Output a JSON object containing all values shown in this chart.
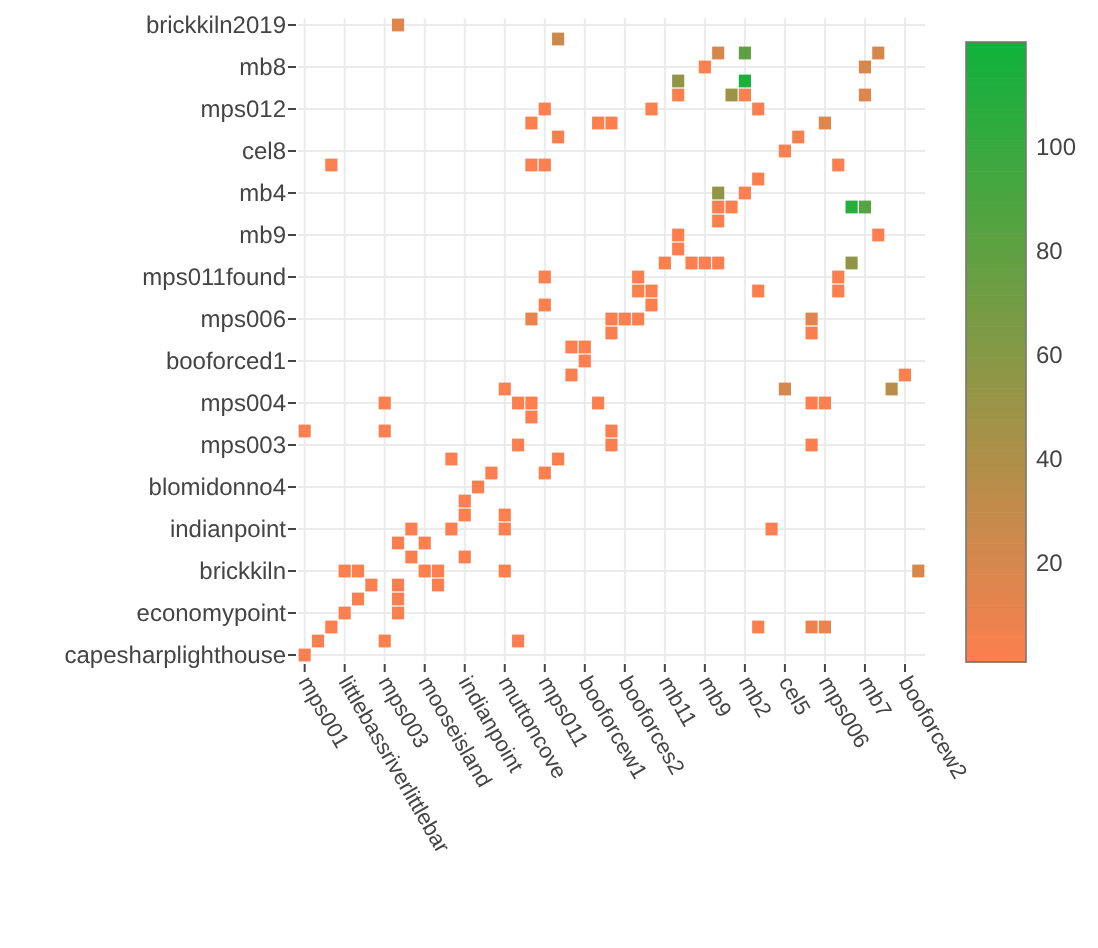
{
  "chart_data": {
    "type": "heatmap",
    "categories": [
      "mps001",
      null,
      null,
      "littlebassriverlittlebar",
      null,
      null,
      "mps003",
      null,
      null,
      "mooseisland",
      null,
      null,
      "indianpoint",
      null,
      null,
      "muttoncove",
      null,
      null,
      "mps011",
      null,
      null,
      "booforcew1",
      null,
      null,
      "booforces2",
      null,
      null,
      "mb11",
      null,
      null,
      "mb9",
      null,
      null,
      "mb2",
      null,
      null,
      "cel5",
      null,
      null,
      "mps006",
      null,
      null,
      "mb7",
      null,
      null,
      "booforcew2",
      null
    ],
    "y_categories": [
      "brickkiln2019",
      null,
      null,
      "mb8",
      null,
      null,
      "mps012",
      null,
      null,
      "cel8",
      null,
      null,
      "mb4",
      null,
      null,
      "mb9",
      null,
      null,
      "mps011found",
      null,
      null,
      "mps006",
      null,
      null,
      "booforced1",
      null,
      null,
      "mps004",
      null,
      null,
      "mps003",
      null,
      null,
      "blomidonno4",
      null,
      null,
      "indianpoint",
      null,
      null,
      "brickkiln",
      null,
      null,
      "economypoint",
      null,
      null,
      "capesharplighthouse"
    ],
    "cells": [
      [
        null,
        null,
        null,
        null,
        null,
        null,
        null,
        15,
        null,
        null,
        null,
        null,
        null,
        null,
        null,
        null,
        null,
        null,
        null,
        null,
        null,
        null,
        null,
        null,
        null,
        null,
        null,
        null,
        null,
        null,
        null,
        null,
        null,
        null,
        null,
        null,
        null,
        null,
        null,
        null,
        null,
        null,
        null,
        null,
        null,
        null,
        null
      ],
      [
        null,
        null,
        null,
        null,
        null,
        null,
        null,
        null,
        null,
        null,
        null,
        null,
        null,
        null,
        null,
        null,
        null,
        null,
        null,
        25,
        null,
        null,
        null,
        null,
        null,
        null,
        null,
        null,
        null,
        null,
        null,
        null,
        null,
        null,
        null,
        null,
        null,
        null,
        null,
        null,
        null,
        null,
        null,
        null,
        null,
        null,
        null
      ],
      [
        null,
        null,
        null,
        null,
        null,
        null,
        null,
        null,
        null,
        null,
        null,
        null,
        null,
        null,
        null,
        null,
        null,
        null,
        null,
        null,
        null,
        null,
        null,
        null,
        null,
        null,
        null,
        null,
        null,
        null,
        null,
        20,
        null,
        80,
        null,
        null,
        null,
        null,
        null,
        null,
        null,
        null,
        null,
        20,
        null,
        null,
        null
      ],
      [
        null,
        null,
        null,
        null,
        null,
        null,
        null,
        null,
        null,
        null,
        null,
        null,
        null,
        null,
        null,
        null,
        null,
        null,
        null,
        null,
        null,
        null,
        null,
        null,
        null,
        null,
        null,
        null,
        null,
        null,
        2,
        null,
        null,
        null,
        null,
        null,
        null,
        null,
        null,
        null,
        null,
        null,
        20,
        null,
        null,
        null,
        null
      ],
      [
        null,
        null,
        null,
        null,
        null,
        null,
        null,
        null,
        null,
        null,
        null,
        null,
        null,
        null,
        null,
        null,
        null,
        null,
        null,
        null,
        null,
        null,
        null,
        null,
        null,
        null,
        null,
        null,
        55,
        null,
        null,
        null,
        null,
        115,
        null,
        null,
        null,
        null,
        null,
        null,
        null,
        null,
        null,
        null,
        null,
        null,
        null
      ],
      [
        null,
        null,
        null,
        null,
        null,
        null,
        null,
        null,
        null,
        null,
        null,
        null,
        null,
        null,
        null,
        null,
        null,
        null,
        null,
        null,
        null,
        null,
        null,
        null,
        null,
        null,
        null,
        null,
        2,
        null,
        null,
        null,
        50,
        2,
        null,
        null,
        null,
        null,
        null,
        null,
        null,
        null,
        15,
        null,
        null,
        null,
        null
      ],
      [
        null,
        null,
        null,
        null,
        null,
        null,
        null,
        null,
        null,
        null,
        null,
        null,
        null,
        null,
        null,
        null,
        null,
        null,
        2,
        null,
        null,
        null,
        null,
        null,
        null,
        null,
        2,
        null,
        null,
        null,
        null,
        null,
        null,
        null,
        2,
        null,
        null,
        null,
        null,
        null,
        null,
        null,
        null,
        null,
        null,
        null,
        null
      ],
      [
        null,
        null,
        null,
        null,
        null,
        null,
        null,
        null,
        null,
        null,
        null,
        null,
        null,
        null,
        null,
        null,
        null,
        2,
        null,
        null,
        null,
        null,
        2,
        2,
        null,
        null,
        null,
        null,
        null,
        null,
        null,
        null,
        null,
        null,
        null,
        null,
        null,
        null,
        null,
        15,
        null,
        null,
        null,
        null,
        null,
        null,
        null
      ],
      [
        null,
        null,
        null,
        null,
        null,
        null,
        null,
        null,
        null,
        null,
        null,
        null,
        null,
        null,
        null,
        null,
        null,
        null,
        null,
        2,
        null,
        null,
        null,
        null,
        null,
        null,
        null,
        null,
        null,
        null,
        null,
        null,
        null,
        null,
        null,
        null,
        null,
        2,
        null,
        null,
        null,
        null,
        null,
        null,
        null,
        null,
        null
      ],
      [
        null,
        null,
        null,
        null,
        null,
        null,
        null,
        null,
        null,
        null,
        null,
        null,
        null,
        null,
        null,
        null,
        null,
        null,
        null,
        null,
        null,
        null,
        null,
        null,
        null,
        null,
        null,
        null,
        null,
        null,
        null,
        null,
        null,
        null,
        null,
        null,
        2,
        null,
        null,
        null,
        null,
        null,
        null,
        null,
        null,
        null,
        null
      ],
      [
        null,
        null,
        2,
        null,
        null,
        null,
        null,
        null,
        null,
        null,
        null,
        null,
        null,
        null,
        null,
        null,
        null,
        2,
        2,
        null,
        null,
        null,
        null,
        null,
        null,
        null,
        null,
        null,
        null,
        null,
        null,
        null,
        null,
        null,
        null,
        null,
        null,
        null,
        null,
        null,
        2,
        null,
        null,
        null,
        null,
        null,
        null
      ],
      [
        null,
        null,
        null,
        null,
        null,
        null,
        null,
        null,
        null,
        null,
        null,
        null,
        null,
        null,
        null,
        null,
        null,
        null,
        null,
        null,
        null,
        null,
        null,
        null,
        null,
        null,
        null,
        null,
        null,
        null,
        null,
        null,
        null,
        null,
        2,
        null,
        null,
        null,
        null,
        null,
        null,
        null,
        null,
        null,
        null,
        null,
        null
      ],
      [
        null,
        null,
        null,
        null,
        null,
        null,
        null,
        null,
        null,
        null,
        null,
        null,
        null,
        null,
        null,
        null,
        null,
        null,
        null,
        null,
        null,
        null,
        null,
        null,
        null,
        null,
        null,
        null,
        null,
        null,
        null,
        55,
        null,
        2,
        null,
        null,
        null,
        null,
        null,
        null,
        null,
        null,
        null,
        null,
        null,
        null,
        null
      ],
      [
        null,
        null,
        null,
        null,
        null,
        null,
        null,
        null,
        null,
        null,
        null,
        null,
        null,
        null,
        null,
        null,
        null,
        null,
        null,
        null,
        null,
        null,
        null,
        null,
        null,
        null,
        null,
        null,
        null,
        null,
        null,
        2,
        2,
        null,
        null,
        null,
        null,
        null,
        null,
        null,
        null,
        110,
        85,
        null,
        null,
        null,
        null
      ],
      [
        null,
        null,
        null,
        null,
        null,
        null,
        null,
        null,
        null,
        null,
        null,
        null,
        null,
        null,
        null,
        null,
        null,
        null,
        null,
        null,
        null,
        null,
        null,
        null,
        null,
        null,
        null,
        null,
        null,
        null,
        null,
        2,
        null,
        null,
        null,
        null,
        null,
        null,
        null,
        null,
        null,
        null,
        null,
        null,
        null,
        null,
        null
      ],
      [
        null,
        null,
        null,
        null,
        null,
        null,
        null,
        null,
        null,
        null,
        null,
        null,
        null,
        null,
        null,
        null,
        null,
        null,
        null,
        null,
        null,
        null,
        null,
        null,
        null,
        null,
        null,
        null,
        2,
        null,
        null,
        null,
        null,
        null,
        null,
        null,
        null,
        null,
        null,
        null,
        null,
        null,
        null,
        2,
        null,
        null,
        null
      ],
      [
        null,
        null,
        null,
        null,
        null,
        null,
        null,
        null,
        null,
        null,
        null,
        null,
        null,
        null,
        null,
        null,
        null,
        null,
        null,
        null,
        null,
        null,
        null,
        null,
        null,
        null,
        null,
        null,
        2,
        null,
        null,
        null,
        null,
        null,
        null,
        null,
        null,
        null,
        null,
        null,
        null,
        null,
        null,
        null,
        null,
        null,
        null
      ],
      [
        null,
        null,
        null,
        null,
        null,
        null,
        null,
        null,
        null,
        null,
        null,
        null,
        null,
        null,
        null,
        null,
        null,
        null,
        null,
        null,
        null,
        null,
        null,
        null,
        null,
        null,
        null,
        2,
        null,
        2,
        2,
        2,
        null,
        null,
        null,
        null,
        null,
        null,
        null,
        null,
        null,
        55,
        null,
        null,
        null,
        null,
        null
      ],
      [
        null,
        null,
        null,
        null,
        null,
        null,
        null,
        null,
        null,
        null,
        null,
        null,
        null,
        null,
        null,
        null,
        null,
        null,
        2,
        null,
        null,
        null,
        null,
        null,
        null,
        2,
        null,
        null,
        null,
        null,
        null,
        null,
        null,
        null,
        null,
        null,
        null,
        null,
        null,
        null,
        2,
        null,
        null,
        null,
        null,
        null,
        null
      ],
      [
        null,
        null,
        null,
        null,
        null,
        null,
        null,
        null,
        null,
        null,
        null,
        null,
        null,
        null,
        null,
        null,
        null,
        null,
        null,
        null,
        null,
        null,
        null,
        null,
        null,
        2,
        2,
        null,
        null,
        null,
        null,
        null,
        null,
        null,
        2,
        null,
        null,
        null,
        null,
        null,
        2,
        null,
        null,
        null,
        null,
        null,
        null
      ],
      [
        null,
        null,
        null,
        null,
        null,
        null,
        null,
        null,
        null,
        null,
        null,
        null,
        null,
        null,
        null,
        null,
        null,
        null,
        2,
        null,
        null,
        null,
        null,
        null,
        null,
        null,
        2,
        null,
        null,
        null,
        null,
        null,
        null,
        null,
        null,
        null,
        null,
        null,
        null,
        null,
        null,
        null,
        null,
        null,
        null,
        null,
        null
      ],
      [
        null,
        null,
        null,
        null,
        null,
        null,
        null,
        null,
        null,
        null,
        null,
        null,
        null,
        null,
        null,
        null,
        null,
        10,
        null,
        null,
        null,
        null,
        null,
        2,
        2,
        2,
        null,
        null,
        null,
        null,
        null,
        null,
        null,
        null,
        null,
        null,
        null,
        null,
        15,
        null,
        null,
        null,
        null,
        null,
        null,
        null,
        null
      ],
      [
        null,
        null,
        null,
        null,
        null,
        null,
        null,
        null,
        null,
        null,
        null,
        null,
        null,
        null,
        null,
        null,
        null,
        null,
        null,
        null,
        null,
        null,
        null,
        2,
        null,
        null,
        null,
        null,
        null,
        null,
        null,
        null,
        null,
        null,
        null,
        null,
        null,
        null,
        2,
        null,
        null,
        null,
        null,
        null,
        null,
        null,
        null
      ],
      [
        null,
        null,
        null,
        null,
        null,
        null,
        null,
        null,
        null,
        null,
        null,
        null,
        null,
        null,
        null,
        null,
        null,
        null,
        null,
        null,
        2,
        2,
        null,
        null,
        null,
        null,
        null,
        null,
        null,
        null,
        null,
        null,
        null,
        null,
        null,
        null,
        null,
        null,
        null,
        null,
        null,
        null,
        null,
        null,
        null,
        null,
        null
      ],
      [
        null,
        null,
        null,
        null,
        null,
        null,
        null,
        null,
        null,
        null,
        null,
        null,
        null,
        null,
        null,
        null,
        null,
        null,
        null,
        null,
        null,
        2,
        null,
        null,
        null,
        null,
        null,
        null,
        null,
        null,
        null,
        null,
        null,
        null,
        null,
        null,
        null,
        null,
        null,
        null,
        null,
        null,
        null,
        null,
        null,
        null,
        null
      ],
      [
        null,
        null,
        null,
        null,
        null,
        null,
        null,
        null,
        null,
        null,
        null,
        null,
        null,
        null,
        null,
        null,
        null,
        null,
        null,
        null,
        2,
        null,
        null,
        null,
        null,
        null,
        null,
        null,
        null,
        null,
        null,
        null,
        null,
        null,
        null,
        null,
        null,
        null,
        null,
        null,
        null,
        null,
        null,
        null,
        null,
        2,
        null
      ],
      [
        null,
        null,
        null,
        null,
        null,
        null,
        null,
        null,
        null,
        null,
        null,
        null,
        null,
        null,
        null,
        2,
        null,
        null,
        null,
        null,
        null,
        null,
        null,
        null,
        null,
        null,
        null,
        null,
        null,
        null,
        null,
        null,
        null,
        null,
        null,
        null,
        20,
        null,
        null,
        null,
        null,
        null,
        null,
        null,
        35,
        null,
        null
      ],
      [
        null,
        null,
        null,
        null,
        null,
        null,
        2,
        null,
        null,
        null,
        null,
        null,
        null,
        null,
        null,
        null,
        2,
        2,
        null,
        null,
        null,
        null,
        2,
        null,
        null,
        null,
        null,
        null,
        null,
        null,
        null,
        null,
        null,
        null,
        null,
        null,
        null,
        null,
        2,
        2,
        null,
        null,
        null,
        null,
        null,
        null,
        null
      ],
      [
        null,
        null,
        null,
        null,
        null,
        null,
        null,
        null,
        null,
        null,
        null,
        null,
        null,
        null,
        null,
        null,
        null,
        2,
        null,
        null,
        null,
        null,
        null,
        null,
        null,
        null,
        null,
        null,
        null,
        null,
        null,
        null,
        null,
        null,
        null,
        null,
        null,
        null,
        null,
        null,
        null,
        null,
        null,
        null,
        null,
        null,
        null
      ],
      [
        2,
        null,
        null,
        null,
        null,
        null,
        2,
        null,
        null,
        null,
        null,
        null,
        null,
        null,
        null,
        null,
        null,
        null,
        null,
        null,
        null,
        null,
        null,
        2,
        null,
        null,
        null,
        null,
        null,
        null,
        null,
        null,
        null,
        null,
        null,
        null,
        null,
        null,
        null,
        null,
        null,
        null,
        null,
        null,
        null,
        null,
        null
      ],
      [
        null,
        null,
        null,
        null,
        null,
        null,
        null,
        null,
        null,
        null,
        null,
        null,
        null,
        null,
        null,
        null,
        2,
        null,
        null,
        null,
        null,
        null,
        null,
        2,
        null,
        null,
        null,
        null,
        null,
        null,
        null,
        null,
        null,
        null,
        null,
        null,
        null,
        null,
        2,
        null,
        null,
        null,
        null,
        null,
        null,
        null,
        null
      ],
      [
        null,
        null,
        null,
        null,
        null,
        null,
        null,
        null,
        null,
        null,
        null,
        2,
        null,
        null,
        null,
        null,
        null,
        null,
        null,
        2,
        null,
        null,
        null,
        null,
        null,
        null,
        null,
        null,
        null,
        null,
        null,
        null,
        null,
        null,
        null,
        null,
        null,
        null,
        null,
        null,
        null,
        null,
        null,
        null,
        null,
        null,
        null
      ],
      [
        null,
        null,
        null,
        null,
        null,
        null,
        null,
        null,
        null,
        null,
        null,
        null,
        null,
        null,
        2,
        null,
        null,
        null,
        2,
        null,
        null,
        null,
        null,
        null,
        null,
        null,
        null,
        null,
        null,
        null,
        null,
        null,
        null,
        null,
        null,
        null,
        null,
        null,
        null,
        null,
        null,
        null,
        null,
        null,
        null,
        null,
        null
      ],
      [
        null,
        null,
        null,
        null,
        null,
        null,
        null,
        null,
        null,
        null,
        null,
        null,
        null,
        2,
        null,
        null,
        null,
        null,
        null,
        null,
        null,
        null,
        null,
        null,
        null,
        null,
        null,
        null,
        null,
        null,
        null,
        null,
        null,
        null,
        null,
        null,
        null,
        null,
        null,
        null,
        null,
        null,
        null,
        null,
        null,
        null,
        null
      ],
      [
        null,
        null,
        null,
        null,
        null,
        null,
        null,
        null,
        null,
        null,
        null,
        null,
        2,
        null,
        null,
        null,
        null,
        null,
        null,
        null,
        null,
        null,
        null,
        null,
        null,
        null,
        null,
        null,
        null,
        null,
        null,
        null,
        null,
        null,
        null,
        null,
        null,
        null,
        null,
        null,
        null,
        null,
        null,
        null,
        null,
        null,
        null
      ],
      [
        null,
        null,
        null,
        null,
        null,
        null,
        null,
        null,
        null,
        null,
        null,
        null,
        2,
        null,
        null,
        2,
        null,
        null,
        null,
        null,
        null,
        null,
        null,
        null,
        null,
        null,
        null,
        null,
        null,
        null,
        null,
        null,
        null,
        null,
        null,
        null,
        null,
        null,
        null,
        null,
        null,
        null,
        null,
        null,
        null,
        null,
        null
      ],
      [
        null,
        null,
        null,
        null,
        null,
        null,
        null,
        null,
        2,
        null,
        null,
        2,
        null,
        null,
        null,
        2,
        null,
        null,
        null,
        null,
        null,
        null,
        null,
        null,
        null,
        null,
        null,
        null,
        null,
        null,
        null,
        null,
        null,
        null,
        null,
        2,
        null,
        null,
        null,
        null,
        null,
        null,
        null,
        null,
        null,
        null,
        null
      ],
      [
        null,
        null,
        null,
        null,
        null,
        null,
        null,
        2,
        null,
        2,
        null,
        null,
        null,
        null,
        null,
        null,
        null,
        null,
        null,
        null,
        null,
        null,
        null,
        null,
        null,
        null,
        null,
        null,
        null,
        null,
        null,
        null,
        null,
        null,
        null,
        null,
        null,
        null,
        null,
        null,
        null,
        null,
        null,
        null,
        null,
        null,
        null
      ],
      [
        null,
        null,
        null,
        null,
        null,
        null,
        null,
        null,
        2,
        null,
        null,
        null,
        2,
        null,
        null,
        null,
        null,
        null,
        null,
        null,
        null,
        null,
        null,
        null,
        null,
        null,
        null,
        null,
        null,
        null,
        null,
        null,
        null,
        null,
        null,
        null,
        null,
        null,
        null,
        null,
        null,
        null,
        null,
        null,
        null,
        null,
        null
      ],
      [
        null,
        null,
        null,
        2,
        2,
        null,
        null,
        null,
        null,
        2,
        2,
        null,
        null,
        null,
        null,
        2,
        null,
        null,
        null,
        null,
        null,
        null,
        null,
        null,
        null,
        null,
        null,
        null,
        null,
        null,
        null,
        null,
        null,
        null,
        null,
        null,
        null,
        null,
        null,
        null,
        null,
        null,
        null,
        null,
        null,
        null,
        20
      ],
      [
        null,
        null,
        null,
        null,
        null,
        2,
        null,
        2,
        null,
        null,
        2,
        null,
        null,
        null,
        null,
        null,
        null,
        null,
        null,
        null,
        null,
        null,
        null,
        null,
        null,
        null,
        null,
        null,
        null,
        null,
        null,
        null,
        null,
        null,
        null,
        null,
        null,
        null,
        null,
        null,
        null,
        null,
        null,
        null,
        null,
        null,
        null
      ],
      [
        null,
        null,
        null,
        null,
        2,
        null,
        null,
        2,
        null,
        null,
        null,
        null,
        null,
        null,
        null,
        null,
        null,
        null,
        null,
        null,
        null,
        null,
        null,
        null,
        null,
        null,
        null,
        null,
        null,
        null,
        null,
        null,
        null,
        null,
        null,
        null,
        null,
        null,
        null,
        null,
        null,
        null,
        null,
        null,
        null,
        null,
        null
      ],
      [
        null,
        null,
        null,
        2,
        null,
        null,
        null,
        2,
        null,
        null,
        null,
        null,
        null,
        null,
        null,
        null,
        null,
        null,
        null,
        null,
        null,
        null,
        null,
        null,
        null,
        null,
        null,
        null,
        null,
        null,
        null,
        null,
        null,
        null,
        null,
        null,
        null,
        null,
        null,
        null,
        null,
        null,
        null,
        null,
        null,
        null,
        null
      ],
      [
        null,
        null,
        2,
        null,
        null,
        null,
        null,
        null,
        null,
        null,
        null,
        null,
        null,
        null,
        null,
        null,
        null,
        null,
        null,
        null,
        null,
        null,
        null,
        null,
        null,
        null,
        null,
        null,
        null,
        null,
        null,
        null,
        null,
        null,
        2,
        null,
        null,
        null,
        10,
        10,
        null,
        null,
        null,
        null,
        null,
        null,
        null
      ],
      [
        null,
        2,
        null,
        null,
        null,
        null,
        2,
        null,
        null,
        null,
        null,
        null,
        null,
        null,
        null,
        null,
        2,
        null,
        null,
        null,
        null,
        null,
        null,
        null,
        null,
        null,
        null,
        null,
        null,
        null,
        null,
        null,
        null,
        null,
        null,
        null,
        null,
        null,
        null,
        null,
        null,
        null,
        null,
        null,
        null,
        null,
        null
      ],
      [
        2,
        null,
        null,
        null,
        null,
        null,
        null,
        null,
        null,
        null,
        null,
        null,
        null,
        null,
        null,
        null,
        null,
        null,
        null,
        null,
        null,
        null,
        null,
        null,
        null,
        null,
        null,
        null,
        null,
        null,
        null,
        null,
        null,
        null,
        null,
        null,
        null,
        null,
        null,
        null,
        null,
        null,
        null,
        null,
        null,
        null,
        null
      ]
    ],
    "clim": [
      1,
      120
    ],
    "cticks": [
      20,
      40,
      60,
      80,
      100
    ],
    "colors": [
      "#fd7f4f",
      "#0fb23b"
    ],
    "grid": true
  }
}
